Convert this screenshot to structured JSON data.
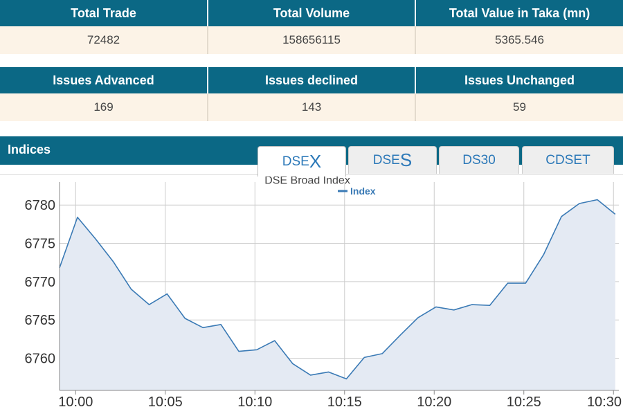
{
  "summary_top": {
    "headers": [
      "Total Trade",
      "Total Volume",
      "Total Value in Taka (mn)"
    ],
    "values": [
      "72482",
      "158656115",
      "5365.546"
    ]
  },
  "summary_issues": {
    "headers": [
      "Issues Advanced",
      "Issues declined",
      "Issues Unchanged"
    ],
    "values": [
      "169",
      "143",
      "59"
    ]
  },
  "indices": {
    "title": "Indices",
    "tabs": [
      {
        "prefix": "DSE",
        "suffix": "X"
      },
      {
        "prefix": "DSE",
        "suffix": "S"
      },
      {
        "label": "DS30"
      },
      {
        "label": "CDSET"
      }
    ],
    "active_tab": "DSEX"
  },
  "colors": {
    "header_bg": "#0b6885",
    "cell_bg": "#fcf3e7",
    "line": "#3a7ab5",
    "fill": "#e4eaf3",
    "tab_text": "#2b78b8"
  },
  "chart_data": {
    "type": "area",
    "title": "DSE Broad Index",
    "legend": {
      "label": "Index",
      "placement": "top-center"
    },
    "series": [
      {
        "name": "Index",
        "values": [
          6771.8,
          6778.4,
          6775.6,
          6772.6,
          6769.0,
          6767.0,
          6768.4,
          6765.2,
          6764.0,
          6764.4,
          6760.9,
          6761.1,
          6762.3,
          6759.3,
          6757.8,
          6758.2,
          6757.3,
          6760.1,
          6760.6,
          6763.0,
          6765.3,
          6766.7,
          6766.3,
          6767.0,
          6766.9,
          6769.8,
          6769.8,
          6773.5,
          6778.5,
          6780.2,
          6780.7,
          6778.8
        ]
      }
    ],
    "x": [
      "10:00",
      "10:01",
      "10:02",
      "10:03",
      "10:04",
      "10:05",
      "10:06",
      "10:07",
      "10:08",
      "10:09",
      "10:10",
      "10:11",
      "10:12",
      "10:13",
      "10:14",
      "10:15",
      "10:16",
      "10:17",
      "10:18",
      "10:19",
      "10:20",
      "10:21",
      "10:22",
      "10:23",
      "10:24",
      "10:25",
      "10:26",
      "10:27",
      "10:28",
      "10:29",
      "10:30",
      "10:31"
    ],
    "first_x_minute": -0.9,
    "x_ticks": [
      "10:00",
      "10:05",
      "10:10",
      "10:15",
      "10:20",
      "10:25",
      "10:30"
    ],
    "y_ticks": [
      6760,
      6765,
      6770,
      6775,
      6780
    ],
    "ylim": [
      6755.8,
      6783.0
    ],
    "grid": true
  }
}
